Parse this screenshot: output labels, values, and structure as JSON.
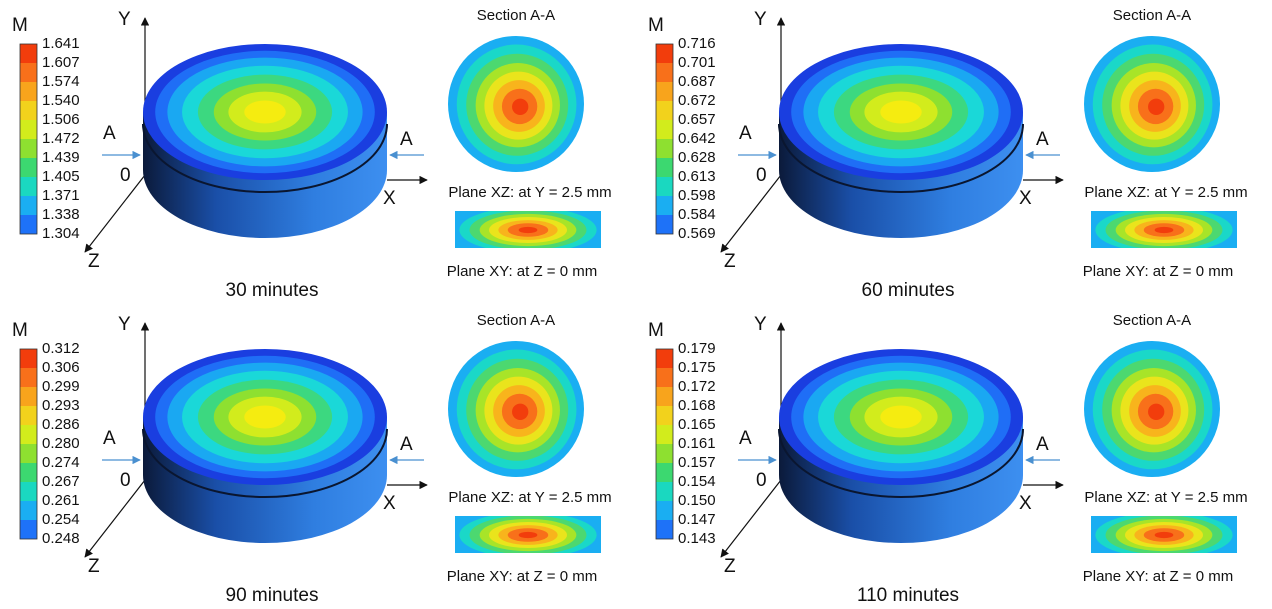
{
  "panels": [
    {
      "legend_title": "M",
      "legend_values": [
        "1.641",
        "1.607",
        "1.574",
        "1.540",
        "1.506",
        "1.472",
        "1.439",
        "1.405",
        "1.371",
        "1.338",
        "1.304"
      ],
      "axis_y": "Y",
      "axis_x": "X",
      "axis_z": "Z",
      "origin": "0",
      "section_marker_left": "A",
      "section_marker_right": "A",
      "section_title": "Section A-A",
      "plane_xz": "Plane XZ: at Y = 2.5 mm",
      "plane_xy": "Plane XY: at Z = 0 mm",
      "caption": "30 minutes"
    },
    {
      "legend_title": "M",
      "legend_values": [
        "0.716",
        "0.701",
        "0.687",
        "0.672",
        "0.657",
        "0.642",
        "0.628",
        "0.613",
        "0.598",
        "0.584",
        "0.569"
      ],
      "axis_y": "Y",
      "axis_x": "X",
      "axis_z": "Z",
      "origin": "0",
      "section_marker_left": "A",
      "section_marker_right": "A",
      "section_title": "Section A-A",
      "plane_xz": "Plane XZ: at Y = 2.5 mm",
      "plane_xy": "Plane XY: at Z = 0 mm",
      "caption": "60 minutes"
    },
    {
      "legend_title": "M",
      "legend_values": [
        "0.312",
        "0.306",
        "0.299",
        "0.293",
        "0.286",
        "0.280",
        "0.274",
        "0.267",
        "0.261",
        "0.254",
        "0.248"
      ],
      "axis_y": "Y",
      "axis_x": "X",
      "axis_z": "Z",
      "origin": "0",
      "section_marker_left": "A",
      "section_marker_right": "A",
      "section_title": "Section A-A",
      "plane_xz": "Plane XZ: at Y = 2.5 mm",
      "plane_xy": "Plane XY: at Z = 0 mm",
      "caption": "90 minutes"
    },
    {
      "legend_title": "M",
      "legend_values": [
        "0.179",
        "0.175",
        "0.172",
        "0.168",
        "0.165",
        "0.161",
        "0.157",
        "0.154",
        "0.150",
        "0.147",
        "0.143"
      ],
      "axis_y": "Y",
      "axis_x": "X",
      "axis_z": "Z",
      "origin": "0",
      "section_marker_left": "A",
      "section_marker_right": "A",
      "section_title": "Section A-A",
      "plane_xz": "Plane XZ: at Y = 2.5 mm",
      "plane_xy": "Plane XY: at Z = 0 mm",
      "caption": "110 minutes"
    }
  ]
}
